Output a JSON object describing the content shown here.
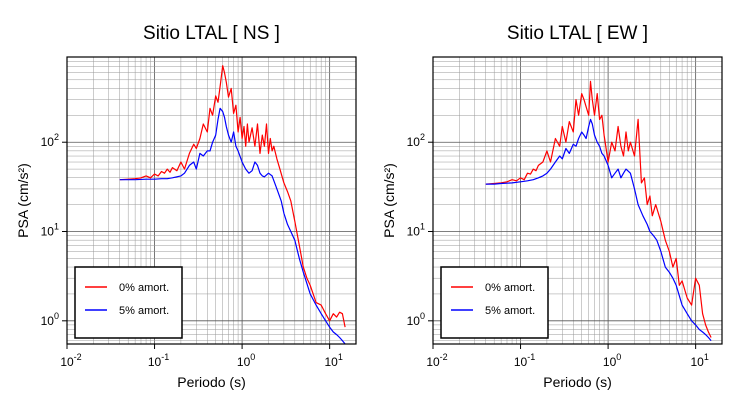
{
  "chart_data": [
    {
      "type": "line",
      "title": "Sitio LTAL [ NS ]",
      "xlabel": "Periodo (s)",
      "ylabel": "PSA (cm/s²)",
      "x_scale": "log",
      "y_scale": "log",
      "xlim": [
        0.01,
        20
      ],
      "ylim": [
        0.55,
        900
      ],
      "grid": true,
      "legend_position": "bottom-left",
      "x_ticks": [
        {
          "base": "10",
          "exp": "-2"
        },
        {
          "base": "10",
          "exp": "-1"
        },
        {
          "base": "10",
          "exp": "0"
        },
        {
          "base": "10",
          "exp": "1"
        }
      ],
      "y_ticks": [
        {
          "base": "10",
          "exp": "0"
        },
        {
          "base": "10",
          "exp": "1"
        },
        {
          "base": "10",
          "exp": "2"
        }
      ],
      "series": [
        {
          "name": "0% amort.",
          "color": "#ff0000",
          "x": [
            0.04,
            0.05,
            0.06,
            0.07,
            0.08,
            0.09,
            0.1,
            0.11,
            0.12,
            0.13,
            0.14,
            0.15,
            0.16,
            0.18,
            0.2,
            0.22,
            0.25,
            0.28,
            0.3,
            0.33,
            0.36,
            0.4,
            0.43,
            0.46,
            0.5,
            0.53,
            0.56,
            0.6,
            0.63,
            0.66,
            0.7,
            0.75,
            0.8,
            0.85,
            0.9,
            0.95,
            1.0,
            1.05,
            1.1,
            1.15,
            1.2,
            1.3,
            1.4,
            1.5,
            1.6,
            1.7,
            1.8,
            1.9,
            2.0,
            2.1,
            2.2,
            2.3,
            2.5,
            2.7,
            3.0,
            3.3,
            3.6,
            4.0,
            4.5,
            5.0,
            5.5,
            6.0,
            7.0,
            8.0,
            9.0,
            10.0,
            11.0,
            12.0,
            13.0,
            14.0,
            15.0
          ],
          "values": [
            38,
            38.5,
            39,
            40,
            42,
            40,
            44,
            42,
            47,
            45,
            50,
            46,
            52,
            48,
            60,
            50,
            75,
            95,
            85,
            110,
            160,
            130,
            240,
            200,
            330,
            280,
            420,
            720,
            600,
            470,
            320,
            400,
            210,
            260,
            130,
            190,
            110,
            150,
            90,
            160,
            100,
            145,
            90,
            160,
            75,
            120,
            90,
            160,
            75,
            110,
            80,
            90,
            65,
            50,
            35,
            28,
            22,
            13,
            7,
            4,
            3,
            2.5,
            1.6,
            1.5,
            1.2,
            1.0,
            1.2,
            1.1,
            1.25,
            1.2,
            0.85
          ]
        },
        {
          "name": "5% amort.",
          "color": "#0000ff",
          "x": [
            0.04,
            0.05,
            0.06,
            0.08,
            0.1,
            0.12,
            0.14,
            0.16,
            0.18,
            0.2,
            0.22,
            0.25,
            0.28,
            0.3,
            0.33,
            0.36,
            0.4,
            0.43,
            0.46,
            0.5,
            0.53,
            0.56,
            0.6,
            0.63,
            0.66,
            0.7,
            0.75,
            0.8,
            0.85,
            0.9,
            1.0,
            1.1,
            1.2,
            1.3,
            1.4,
            1.5,
            1.6,
            1.7,
            1.8,
            2.0,
            2.2,
            2.5,
            2.8,
            3.0,
            3.3,
            3.6,
            4.0,
            4.5,
            5.0,
            6.0,
            7.0,
            8.0,
            9.0,
            10.0,
            11.0,
            12.0,
            13.0,
            14.0,
            15.0
          ],
          "values": [
            38,
            38,
            38,
            38.5,
            38.5,
            39,
            39,
            40,
            41,
            42,
            45,
            55,
            60,
            50,
            75,
            70,
            80,
            80,
            100,
            120,
            180,
            240,
            220,
            190,
            150,
            120,
            100,
            130,
            90,
            80,
            60,
            50,
            45,
            48,
            60,
            55,
            45,
            42,
            41,
            45,
            42,
            30,
            22,
            16,
            12,
            10,
            8,
            5,
            3.5,
            2,
            1.5,
            1.2,
            1.0,
            0.85,
            0.75,
            0.7,
            0.65,
            0.6,
            0.55
          ]
        }
      ]
    },
    {
      "type": "line",
      "title": "Sitio LTAL [ EW ]",
      "xlabel": "Periodo (s)",
      "ylabel": "PSA (cm/s²)",
      "x_scale": "log",
      "y_scale": "log",
      "xlim": [
        0.01,
        20
      ],
      "ylim": [
        0.55,
        900
      ],
      "grid": true,
      "legend_position": "bottom-left",
      "x_ticks": [
        {
          "base": "10",
          "exp": "-2"
        },
        {
          "base": "10",
          "exp": "-1"
        },
        {
          "base": "10",
          "exp": "0"
        },
        {
          "base": "10",
          "exp": "1"
        }
      ],
      "y_ticks": [
        {
          "base": "10",
          "exp": "0"
        },
        {
          "base": "10",
          "exp": "1"
        },
        {
          "base": "10",
          "exp": "2"
        }
      ],
      "series": [
        {
          "name": "0% amort.",
          "color": "#ff0000",
          "x": [
            0.04,
            0.05,
            0.06,
            0.07,
            0.08,
            0.09,
            0.1,
            0.11,
            0.12,
            0.13,
            0.14,
            0.15,
            0.16,
            0.18,
            0.2,
            0.22,
            0.25,
            0.28,
            0.3,
            0.33,
            0.36,
            0.4,
            0.43,
            0.46,
            0.5,
            0.53,
            0.56,
            0.6,
            0.63,
            0.66,
            0.7,
            0.75,
            0.8,
            0.85,
            0.9,
            1.0,
            1.1,
            1.2,
            1.3,
            1.4,
            1.5,
            1.6,
            1.7,
            1.8,
            2.0,
            2.2,
            2.4,
            2.6,
            2.8,
            3.0,
            3.2,
            3.5,
            4.0,
            4.5,
            5.0,
            5.5,
            6.0,
            6.5,
            7.0,
            8.0,
            9.0,
            10.0,
            11.0,
            12.0,
            13.0,
            14.0,
            15.0
          ],
          "values": [
            34,
            34.5,
            35,
            36,
            38,
            37,
            40,
            38,
            45,
            44,
            50,
            48,
            55,
            60,
            80,
            60,
            110,
            90,
            150,
            100,
            170,
            130,
            300,
            200,
            350,
            300,
            250,
            200,
            480,
            300,
            200,
            350,
            180,
            200,
            120,
            60,
            100,
            80,
            150,
            90,
            70,
            130,
            80,
            100,
            70,
            180,
            35,
            40,
            20,
            25,
            15,
            20,
            13,
            8,
            6,
            4,
            5,
            2.5,
            2.8,
            1.8,
            1.5,
            3.0,
            2.5,
            1.2,
            0.9,
            0.75,
            0.65
          ]
        },
        {
          "name": "5% amort.",
          "color": "#0000ff",
          "x": [
            0.04,
            0.05,
            0.06,
            0.08,
            0.1,
            0.12,
            0.14,
            0.16,
            0.18,
            0.2,
            0.22,
            0.25,
            0.28,
            0.3,
            0.33,
            0.36,
            0.4,
            0.43,
            0.46,
            0.5,
            0.53,
            0.56,
            0.6,
            0.63,
            0.66,
            0.7,
            0.75,
            0.8,
            0.85,
            0.9,
            1.0,
            1.1,
            1.2,
            1.3,
            1.4,
            1.5,
            1.6,
            1.8,
            2.0,
            2.2,
            2.5,
            2.8,
            3.0,
            3.3,
            3.6,
            4.0,
            4.5,
            5.0,
            5.5,
            6.0,
            7.0,
            8.0,
            9.0,
            10.0,
            11.0,
            12.0,
            13.0,
            14.0,
            15.0
          ],
          "values": [
            34,
            34,
            34.5,
            35,
            36,
            37,
            38,
            40,
            42,
            45,
            50,
            60,
            70,
            65,
            85,
            75,
            95,
            90,
            110,
            130,
            120,
            110,
            150,
            180,
            160,
            120,
            100,
            90,
            75,
            70,
            55,
            40,
            45,
            50,
            40,
            45,
            50,
            45,
            30,
            20,
            15,
            12,
            10,
            9,
            8,
            6,
            4,
            3.5,
            3,
            2.5,
            1.5,
            1.2,
            1.0,
            0.9,
            0.8,
            0.75,
            0.7,
            0.65,
            0.6
          ]
        }
      ]
    }
  ]
}
